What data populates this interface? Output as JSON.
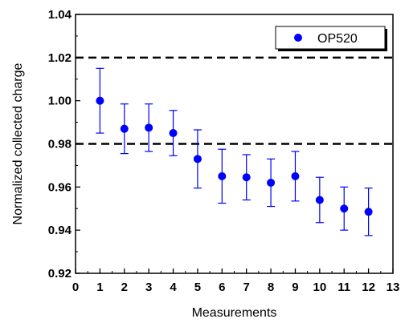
{
  "chart_data": {
    "type": "scatter",
    "xlabel": "Measurements",
    "ylabel": "Normalized collected charge",
    "xlim": [
      0,
      13
    ],
    "ylim": [
      0.92,
      1.04
    ],
    "xticks": [
      "0",
      "1",
      "2",
      "3",
      "4",
      "5",
      "6",
      "7",
      "8",
      "9",
      "10",
      "11",
      "12",
      "13"
    ],
    "yticks": [
      "0.92",
      "0.94",
      "0.96",
      "0.98",
      "1.00",
      "1.02",
      "1.04"
    ],
    "grid": false,
    "legend_position": "top-right",
    "reference_lines": [
      1.02,
      0.98
    ],
    "series": [
      {
        "name": "OP520",
        "color": "#0000ff",
        "x": [
          1,
          2,
          3,
          4,
          5,
          6,
          7,
          8,
          9,
          10,
          11,
          12
        ],
        "y": [
          1.0,
          0.987,
          0.9875,
          0.985,
          0.973,
          0.965,
          0.9645,
          0.962,
          0.965,
          0.954,
          0.95,
          0.9485
        ],
        "err": [
          0.015,
          0.0115,
          0.011,
          0.0105,
          0.0135,
          0.0125,
          0.0105,
          0.011,
          0.0115,
          0.0105,
          0.01,
          0.011
        ]
      }
    ]
  }
}
